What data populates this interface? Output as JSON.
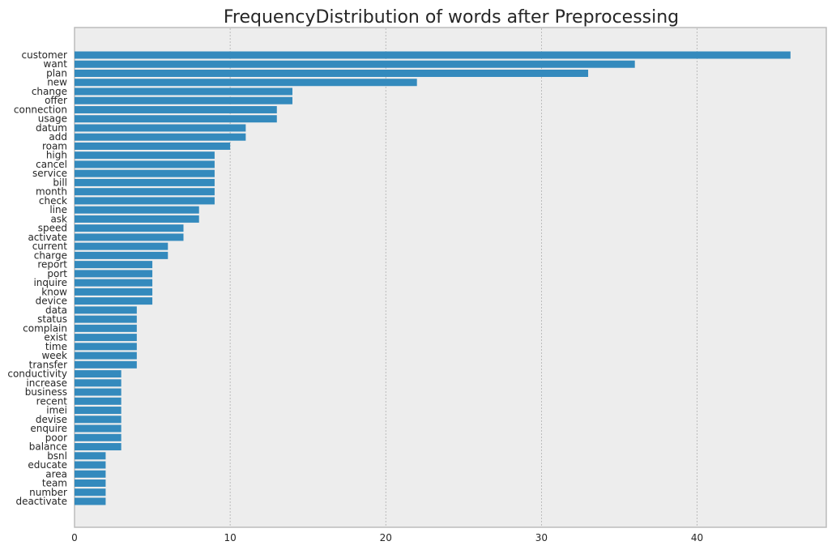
{
  "chart_data": {
    "type": "bar",
    "orientation": "horizontal",
    "title": "FrequencyDistribution of words after Preprocessing",
    "xlabel": "",
    "ylabel": "",
    "xlim": [
      0,
      48.3
    ],
    "xticks": [
      0,
      10,
      20,
      30,
      40
    ],
    "grid": "vertical dotted",
    "legend": "none",
    "categories": [
      "customer",
      "want",
      "plan",
      "new",
      "change",
      "offer",
      "connection",
      "usage",
      "datum",
      "add",
      "roam",
      "high",
      "cancel",
      "service",
      "bill",
      "month",
      "check",
      "line",
      "ask",
      "speed",
      "activate",
      "current",
      "charge",
      "report",
      "port",
      "inquire",
      "know",
      "device",
      "data",
      "status",
      "complain",
      "exist",
      "time",
      "week",
      "transfer",
      "conductivity",
      "increase",
      "business",
      "recent",
      "imei",
      "devise",
      "enquire",
      "poor",
      "balance",
      "bsnl",
      "educate",
      "area",
      "team",
      "number",
      "deactivate"
    ],
    "values": [
      46,
      36,
      33,
      22,
      14,
      14,
      13,
      13,
      11,
      11,
      10,
      9,
      9,
      9,
      9,
      9,
      9,
      8,
      8,
      7,
      7,
      6,
      6,
      5,
      5,
      5,
      5,
      5,
      4,
      4,
      4,
      4,
      4,
      4,
      4,
      3,
      3,
      3,
      3,
      3,
      3,
      3,
      3,
      3,
      2,
      2,
      2,
      2,
      2,
      2
    ],
    "colors": {
      "bar": "#348ABD",
      "plot_bg": "#EDEDED",
      "grid": "#B0B0B0",
      "frame": "#BCBCBC"
    }
  }
}
